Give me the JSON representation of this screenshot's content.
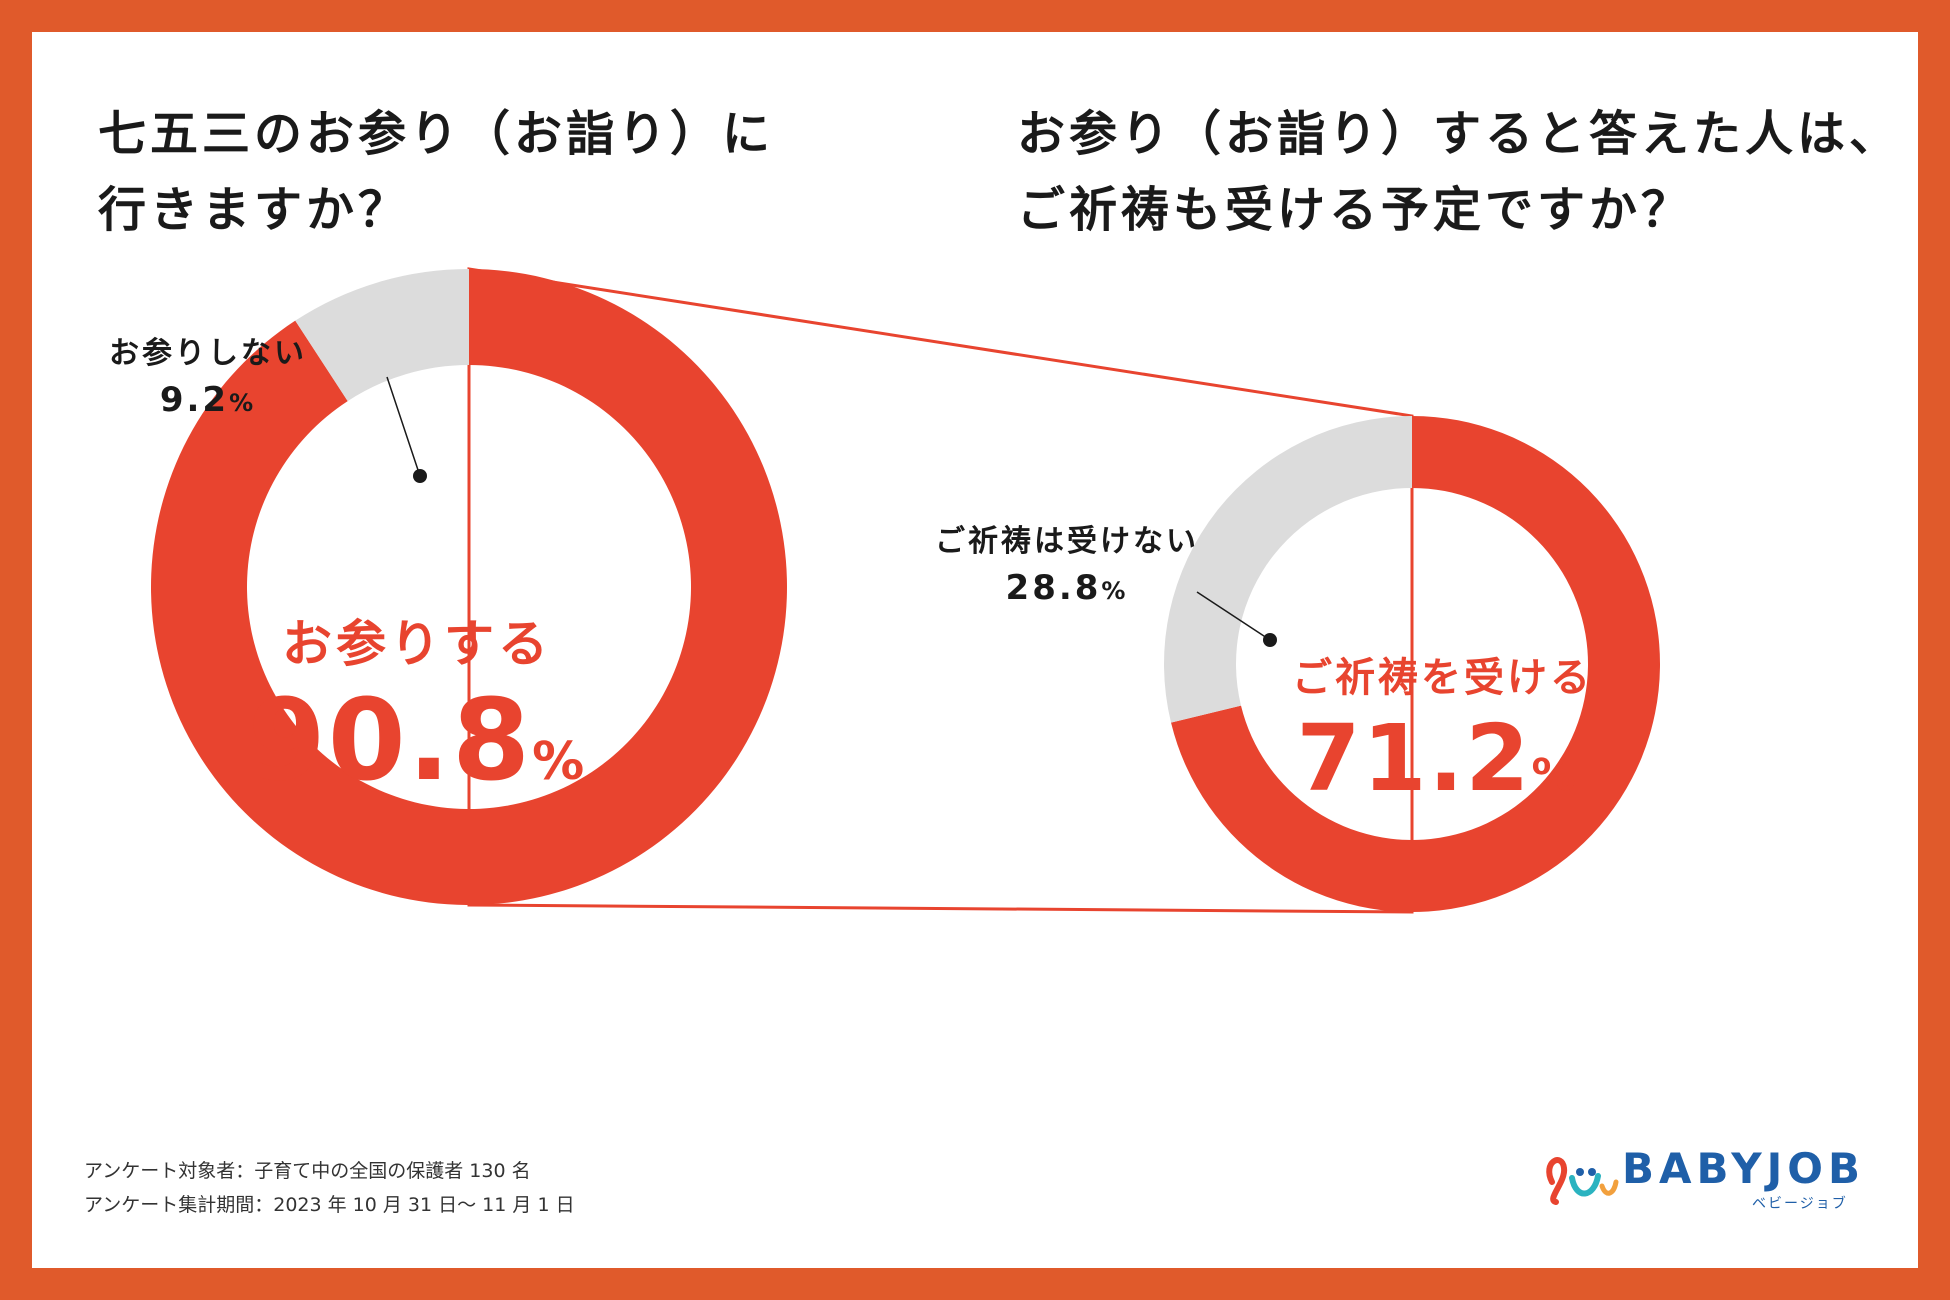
{
  "colors": {
    "frame": "#e05a2b",
    "accent": "#e8442f",
    "gray": "#dcdcdc",
    "text": "#1a1a1a",
    "logo": "#1f5fa8"
  },
  "titles": {
    "left_line1": "七五三のお参り（お詣り）に",
    "left_line2": "行きますか？",
    "right_line1": "お参り（お詣り）すると答えた人は、",
    "right_line2": "ご祈祷も受ける予定ですか？"
  },
  "chart_data": [
    {
      "type": "pie",
      "title": "七五三のお参り（お詣り）に行きますか？",
      "series": [
        {
          "name": "お参りする",
          "value": 90.8
        },
        {
          "name": "お参りしない",
          "value": 9.2
        }
      ],
      "unit": "%",
      "center_label": "お参りする",
      "center_value": "90.8",
      "callout_label": "お参りしない",
      "callout_value": "9.2"
    },
    {
      "type": "pie",
      "title": "お参り（お詣り）すると答えた人は、ご祈祷も受ける予定ですか？",
      "series": [
        {
          "name": "ご祈祷を受ける",
          "value": 71.2
        },
        {
          "name": "ご祈祷は受けない",
          "value": 28.8
        }
      ],
      "unit": "%",
      "center_label": "ご祈祷を受ける",
      "center_value": "71.2",
      "callout_label": "ご祈祷は受けない",
      "callout_value": "28.8"
    }
  ],
  "footnotes": {
    "line1": "アンケート対象者：子育て中の全国の保護者 130 名",
    "line2": "アンケート集計期間：2023 年 10 月 31 日～ 11 月 1 日"
  },
  "logo": {
    "name": "BABYJOB",
    "sub": "ベビージョブ"
  }
}
